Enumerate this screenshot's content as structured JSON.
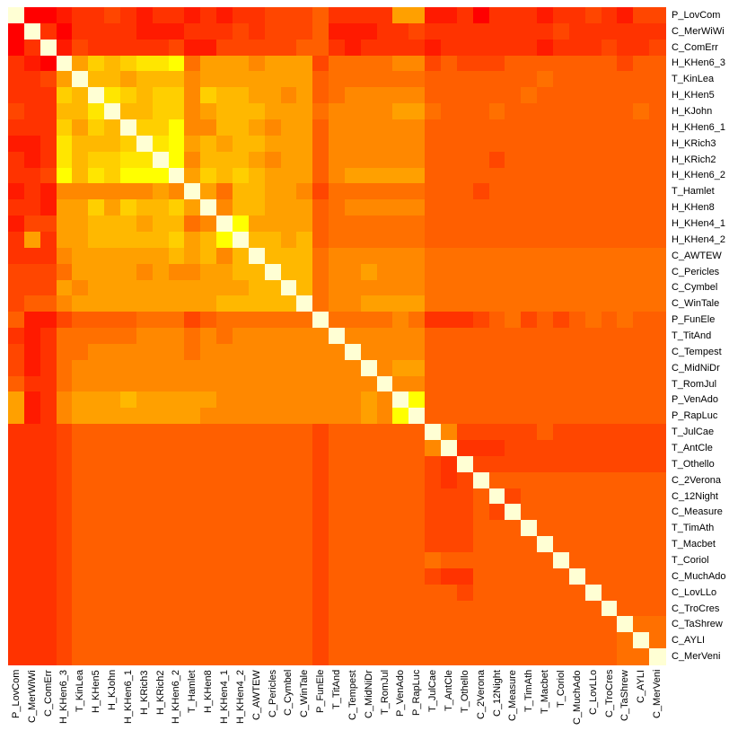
{
  "chart_data": {
    "type": "heatmap",
    "title": "",
    "labels": [
      "P_LovCom",
      "C_MerWiWi",
      "C_ComErr",
      "H_KHen6_3",
      "T_KinLea",
      "H_KHen5",
      "H_KJohn",
      "H_KHen6_1",
      "H_KRich3",
      "H_KRich2",
      "H_KHen6_2",
      "T_Hamlet",
      "H_KHen8",
      "H_KHen4_1",
      "H_KHen4_2",
      "C_AWTEW",
      "C_Pericles",
      "C_Cymbel",
      "C_WinTale",
      "P_FunEle",
      "T_TitAnd",
      "C_Tempest",
      "C_MidNiDr",
      "T_RomJul",
      "P_VenAdo",
      "P_RapLuc",
      "T_JulCae",
      "T_AntCle",
      "T_Othello",
      "C_2Verona",
      "C_12Night",
      "C_Measure",
      "T_TimAth",
      "T_Macbet",
      "T_Coriol",
      "C_MuchAdo",
      "C_LovLLo",
      "C_TroCres",
      "C_TaShrew",
      "C_AYLI",
      "C_MerVeni"
    ],
    "value_scale": "levels 0 (red, low similarity) to 11 (yellow, high similarity); w = diagonal (self, maximum)",
    "palette": [
      "#FF0000",
      "#FF1A00",
      "#FF3300",
      "#FF4600",
      "#FF5F00",
      "#FF7000",
      "#FF8800",
      "#FFA000",
      "#FFB800",
      "#FFCF00",
      "#FFE600",
      "#FFFF00"
    ],
    "diagonal_color": "#FFFFD4",
    "rows": [
      "w00122321221212233342222771120222122321 33",
      "0w2022221112223233341112232222222232222 22",
      "02w1322222311333334421222212222221222322 3",
      "210w7989aab577767773555566343334444444344",
      "2237w8878886777777745555554444444544444 44",
      "22298wa989969887767456666644444454444444 4",
      "32288aw88996788877756666775444544444444 54",
      "2229798w99b66887677466666644444444444444 4",
      "112a8889wab787887774666666444444444444444",
      "212a899aawb688876774666666444434444444444",
      "223b8a9bbbw798987774677777444444444444444",
      "12166666676w758877635555554443444444444 44",
      "221779798897w68877745666664444444444444 44",
      "13377888788 56wb77774555555444444444444444",
      "27277888889 78bw88784555555444444444444444",
      "22267777778 7868w8885666666555555555555555",
      "33357777676 67788w885667666555555555555555",
      "33376777777 777788w85666666555555555555555",
      "34467777777 7788888w5667777555555555555555",
      "41134444555 34555555w555565222345343454544",
      "21255555666 565666666w66666444444444444444",
      "31255666666 5666666666w6666444444444444444",
      "31256666666 66666666666w677444444444444444",
      "42256666666 666666666666w66444444444444444",
      "71267778777 7766666666676wb444444444444444",
      "71267777777 7666666666676bw444444444444444",
      "22234444444 444444443444444w63333343333333",
      "22234444444 4444444434444446w2223333333333",
      "22234444444 44444444344444432w333333333333",
      "22234444444 444444443444444323w44444444444",
      "22234444444 4444444434444443334w3444444444",
      "22234444444 44444444344444433343w444444444",
      "22234444444 444444443444444333444w44444444",
      "22234444444 4444444434444443334444w4444444",
      "22234444444 44444444344444454444444w444444",
      "22234444444 444444443444444322444444w44444",
      "22234444444 4444444434444444434444444w4444",
      "22234444444 44444444344444444444444444w444",
      "22234444444 444444443444444444444444444w55",
      "22234444444 4444444434444444444444444445w5",
      "22234444444 44444444344444444444444444455w"
    ]
  }
}
